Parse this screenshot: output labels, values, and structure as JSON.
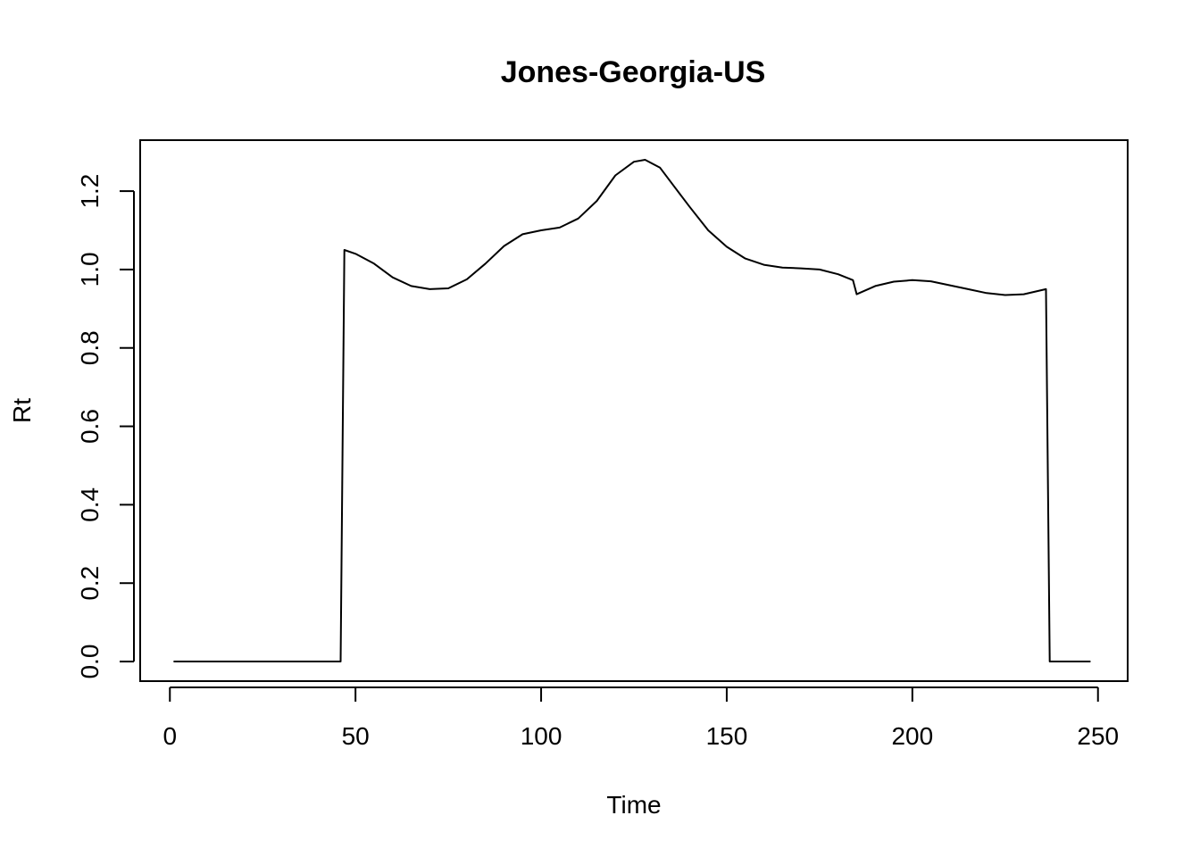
{
  "chart_data": {
    "type": "line",
    "title": "Jones-Georgia-US",
    "xlabel": "Time",
    "ylabel": "Rt",
    "xlim": [
      -8,
      258
    ],
    "ylim": [
      -0.05,
      1.33
    ],
    "x_ticks": [
      0,
      50,
      100,
      150,
      200,
      250
    ],
    "y_ticks": [
      0.0,
      0.2,
      0.4,
      0.6,
      0.8,
      1.0,
      1.2
    ],
    "x_tick_labels": [
      "0",
      "50",
      "100",
      "150",
      "200",
      "250"
    ],
    "y_tick_labels": [
      "0.0",
      "0.2",
      "0.4",
      "0.6",
      "0.8",
      "1.0",
      "1.2"
    ],
    "grid": false,
    "legend": "none",
    "line_color": "#000000",
    "series": [
      {
        "x": [
          1,
          46,
          47,
          50,
          55,
          60,
          65,
          70,
          75,
          80,
          85,
          90,
          95,
          100,
          105,
          110,
          115,
          120,
          125,
          128,
          132,
          136,
          140,
          145,
          150,
          155,
          160,
          165,
          170,
          175,
          180,
          184,
          185,
          190,
          195,
          200,
          205,
          210,
          215,
          220,
          225,
          230,
          236,
          237,
          248
        ],
        "y": [
          0,
          0,
          1.05,
          1.04,
          1.015,
          0.98,
          0.958,
          0.95,
          0.952,
          0.975,
          1.015,
          1.06,
          1.09,
          1.1,
          1.107,
          1.13,
          1.175,
          1.24,
          1.275,
          1.28,
          1.26,
          1.21,
          1.16,
          1.1,
          1.058,
          1.028,
          1.012,
          1.005,
          1.003,
          1.0,
          0.988,
          0.973,
          0.937,
          0.958,
          0.969,
          0.973,
          0.97,
          0.96,
          0.95,
          0.94,
          0.935,
          0.937,
          0.95,
          0,
          0
        ]
      }
    ]
  }
}
